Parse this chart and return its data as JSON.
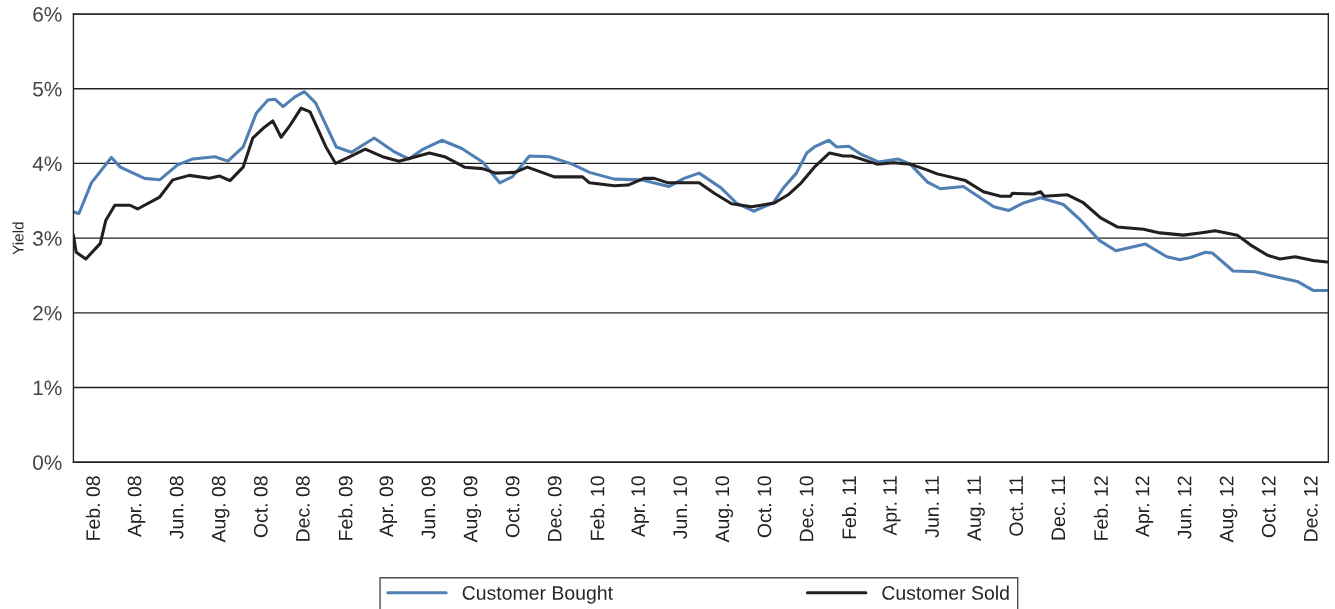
{
  "chart_data": {
    "type": "line",
    "ylabel": "Yield",
    "ylim": [
      0,
      6
    ],
    "yticks": [
      {
        "value": 0,
        "label": "0%"
      },
      {
        "value": 1,
        "label": "1%"
      },
      {
        "value": 2,
        "label": "2%"
      },
      {
        "value": 3,
        "label": "3%"
      },
      {
        "value": 4,
        "label": "4%"
      },
      {
        "value": 5,
        "label": "5%"
      },
      {
        "value": 6,
        "label": "6%"
      }
    ],
    "xlim": [
      "2008-01-01",
      "2012-12-24"
    ],
    "xticks": [
      {
        "value": "2008-02-01",
        "label": "Feb. 08"
      },
      {
        "value": "2008-04-01",
        "label": "Apr. 08"
      },
      {
        "value": "2008-06-01",
        "label": "Jun. 08"
      },
      {
        "value": "2008-08-01",
        "label": "Aug. 08"
      },
      {
        "value": "2008-10-01",
        "label": "Oct. 08"
      },
      {
        "value": "2008-12-01",
        "label": "Dec. 08"
      },
      {
        "value": "2009-02-01",
        "label": "Feb. 09"
      },
      {
        "value": "2009-04-01",
        "label": "Apr. 09"
      },
      {
        "value": "2009-06-01",
        "label": "Jun. 09"
      },
      {
        "value": "2009-08-01",
        "label": "Aug. 09"
      },
      {
        "value": "2009-10-01",
        "label": "Oct. 09"
      },
      {
        "value": "2009-12-01",
        "label": "Dec. 09"
      },
      {
        "value": "2010-02-01",
        "label": "Feb. 10"
      },
      {
        "value": "2010-04-01",
        "label": "Apr. 10"
      },
      {
        "value": "2010-06-01",
        "label": "Jun. 10"
      },
      {
        "value": "2010-08-01",
        "label": "Aug. 10"
      },
      {
        "value": "2010-10-01",
        "label": "Oct. 10"
      },
      {
        "value": "2010-12-01",
        "label": "Dec. 10"
      },
      {
        "value": "2011-02-01",
        "label": "Feb. 11"
      },
      {
        "value": "2011-04-01",
        "label": "Apr. 11"
      },
      {
        "value": "2011-06-01",
        "label": "Jun. 11"
      },
      {
        "value": "2011-08-01",
        "label": "Aug. 11"
      },
      {
        "value": "2011-10-01",
        "label": "Oct. 11"
      },
      {
        "value": "2011-12-01",
        "label": "Dec. 11"
      },
      {
        "value": "2012-02-01",
        "label": "Feb. 12"
      },
      {
        "value": "2012-04-01",
        "label": "Apr. 12"
      },
      {
        "value": "2012-06-01",
        "label": "Jun. 12"
      },
      {
        "value": "2012-08-01",
        "label": "Aug. 12"
      },
      {
        "value": "2012-10-01",
        "label": "Oct. 12"
      },
      {
        "value": "2012-12-01",
        "label": "Dec. 12"
      }
    ],
    "grid": "y",
    "legend": "bottom",
    "marker": "none",
    "line_style": "solid",
    "series": [
      {
        "name": "Customer Bought",
        "color": "#4f7fb3",
        "x": [
          "2008-01-01",
          "2008-01-09",
          "2008-01-27",
          "2008-02-25",
          "2008-03-09",
          "2008-04-13",
          "2008-05-05",
          "2008-05-31",
          "2008-06-22",
          "2008-07-24",
          "2008-08-12",
          "2008-09-03",
          "2008-09-22",
          "2008-10-09",
          "2008-10-19",
          "2008-10-31",
          "2008-11-17",
          "2008-12-01",
          "2008-12-17",
          "2009-01-16",
          "2009-02-07",
          "2009-03-12",
          "2009-04-11",
          "2009-05-01",
          "2009-05-20",
          "2009-06-18",
          "2009-07-17",
          "2009-08-16",
          "2009-09-10",
          "2009-09-28",
          "2009-10-23",
          "2009-11-21",
          "2009-12-24",
          "2010-01-18",
          "2010-02-23",
          "2010-04-03",
          "2010-05-13",
          "2010-06-04",
          "2010-06-26",
          "2010-07-28",
          "2010-08-19",
          "2010-09-13",
          "2010-10-11",
          "2010-10-26",
          "2010-11-14",
          "2010-11-29",
          "2010-12-10",
          "2010-12-31",
          "2011-01-11",
          "2011-01-29",
          "2011-02-16",
          "2011-03-13",
          "2011-04-10",
          "2011-04-28",
          "2011-05-23",
          "2011-06-11",
          "2011-07-14",
          "2011-08-27",
          "2011-09-18",
          "2011-10-09",
          "2011-11-03",
          "2011-12-06",
          "2011-12-31",
          "2012-01-27",
          "2012-02-20",
          "2012-04-03",
          "2012-05-04",
          "2012-05-23",
          "2012-06-07",
          "2012-06-29",
          "2012-07-09",
          "2012-08-08",
          "2012-09-09",
          "2012-10-01",
          "2012-11-09",
          "2012-12-02",
          "2012-12-22"
        ],
        "values": [
          3.35,
          3.33,
          3.74,
          4.08,
          3.95,
          3.8,
          3.78,
          3.98,
          4.06,
          4.09,
          4.03,
          4.22,
          4.67,
          4.85,
          4.86,
          4.76,
          4.89,
          4.96,
          4.81,
          4.22,
          4.15,
          4.34,
          4.15,
          4.06,
          4.18,
          4.31,
          4.2,
          4.02,
          3.74,
          3.82,
          4.1,
          4.09,
          3.99,
          3.88,
          3.79,
          3.78,
          3.69,
          3.8,
          3.87,
          3.67,
          3.47,
          3.36,
          3.47,
          3.67,
          3.87,
          4.14,
          4.22,
          4.31,
          4.22,
          4.23,
          4.12,
          4.02,
          4.06,
          3.99,
          3.75,
          3.66,
          3.69,
          3.42,
          3.37,
          3.47,
          3.54,
          3.45,
          3.24,
          2.97,
          2.83,
          2.92,
          2.75,
          2.71,
          2.74,
          2.81,
          2.8,
          2.56,
          2.55,
          2.5,
          2.42,
          2.3,
          2.3
        ]
      },
      {
        "name": "Customer Sold",
        "color": "#231f20",
        "x": [
          "2008-01-01",
          "2008-01-05",
          "2008-01-19",
          "2008-02-09",
          "2008-02-17",
          "2008-03-01",
          "2008-03-23",
          "2008-04-03",
          "2008-05-05",
          "2008-05-24",
          "2008-06-17",
          "2008-07-16",
          "2008-07-31",
          "2008-08-15",
          "2008-09-03",
          "2008-09-17",
          "2008-10-02",
          "2008-10-16",
          "2008-10-28",
          "2008-11-10",
          "2008-11-26",
          "2008-12-09",
          "2009-01-01",
          "2009-01-15",
          "2009-02-05",
          "2009-02-27",
          "2009-03-24",
          "2009-04-17",
          "2009-05-31",
          "2009-06-22",
          "2009-07-21",
          "2009-08-16",
          "2009-09-04",
          "2009-10-02",
          "2009-10-20",
          "2009-11-28",
          "2010-01-08",
          "2010-01-18",
          "2010-02-23",
          "2010-03-15",
          "2010-04-07",
          "2010-04-22",
          "2010-05-12",
          "2010-06-26",
          "2010-07-18",
          "2010-08-12",
          "2010-09-10",
          "2010-10-13",
          "2010-11-02",
          "2010-11-21",
          "2010-12-10",
          "2011-01-01",
          "2011-01-21",
          "2011-02-02",
          "2011-03-11",
          "2011-04-04",
          "2011-04-28",
          "2011-05-23",
          "2011-06-06",
          "2011-07-17",
          "2011-08-12",
          "2011-09-06",
          "2011-09-20",
          "2011-09-23",
          "2011-10-24",
          "2011-11-03",
          "2011-11-08",
          "2011-12-12",
          "2012-01-03",
          "2012-01-29",
          "2012-02-22",
          "2012-03-31",
          "2012-04-24",
          "2012-05-28",
          "2012-06-21",
          "2012-07-13",
          "2012-08-14",
          "2012-09-02",
          "2012-09-27",
          "2012-10-15",
          "2012-11-06",
          "2012-12-02",
          "2012-12-22"
        ],
        "values": [
          3.04,
          2.81,
          2.72,
          2.93,
          3.24,
          3.44,
          3.44,
          3.39,
          3.55,
          3.78,
          3.84,
          3.8,
          3.83,
          3.77,
          3.95,
          4.34,
          4.47,
          4.57,
          4.35,
          4.51,
          4.74,
          4.69,
          4.22,
          4.0,
          4.09,
          4.19,
          4.09,
          4.03,
          4.14,
          4.09,
          3.95,
          3.93,
          3.87,
          3.88,
          3.95,
          3.82,
          3.82,
          3.74,
          3.7,
          3.71,
          3.8,
          3.8,
          3.74,
          3.74,
          3.6,
          3.46,
          3.42,
          3.47,
          3.58,
          3.74,
          3.95,
          4.14,
          4.1,
          4.1,
          3.99,
          4.01,
          3.99,
          3.91,
          3.86,
          3.77,
          3.62,
          3.56,
          3.56,
          3.6,
          3.59,
          3.62,
          3.56,
          3.58,
          3.48,
          3.27,
          3.15,
          3.12,
          3.07,
          3.04,
          3.07,
          3.1,
          3.04,
          2.91,
          2.77,
          2.72,
          2.75,
          2.7,
          2.68
        ]
      }
    ]
  }
}
